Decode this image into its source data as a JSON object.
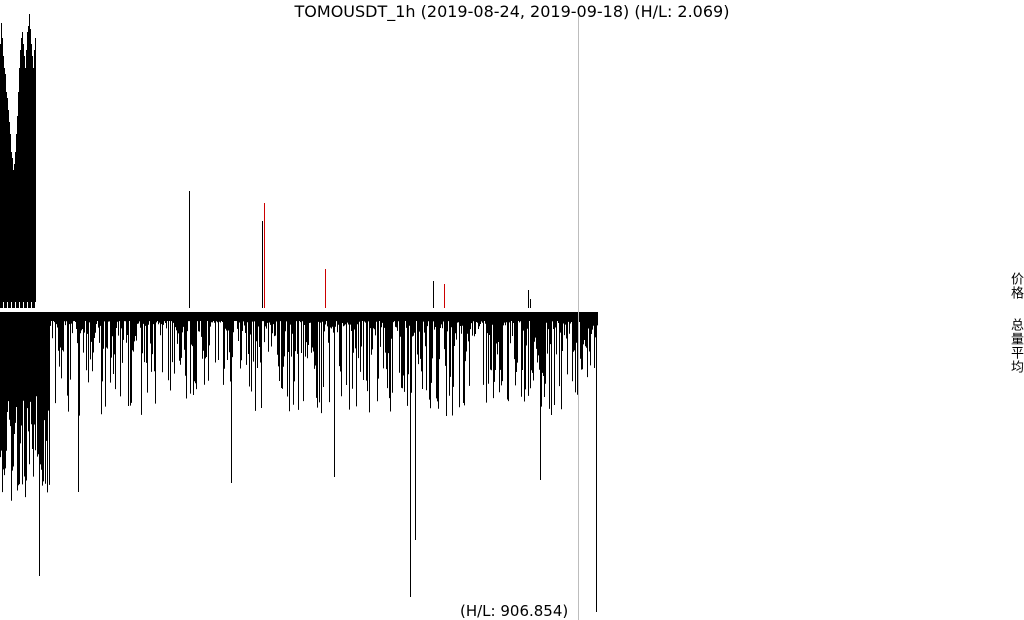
{
  "chart_data": {
    "type": "bar",
    "title": "TOMOUSDT_1h (2019-08-24, 2019-09-18) (H/L: 2.069)",
    "symbol": "TOMOUSDT",
    "interval": "1h",
    "date_range": [
      "2019-08-24",
      "2019-09-18"
    ],
    "panels": [
      {
        "name": "价格",
        "high_low_ratio": 2.069,
        "baseline": "bottom",
        "colors": {
          "normal": "#000000",
          "highlight": "#cc0000"
        },
        "series_description": "price spikes: dense band at start, isolated spikes later",
        "dense_start_values": [
          0.88,
          0.95,
          0.9,
          0.84,
          0.8,
          0.78,
          0.72,
          0.7,
          0.66,
          0.62,
          0.58,
          0.52,
          0.5,
          0.46,
          0.48,
          0.52,
          0.58,
          0.64,
          0.72,
          0.8,
          0.86,
          0.9,
          0.92,
          0.88,
          0.84,
          0.8,
          0.86,
          0.92,
          0.94,
          0.98,
          0.93,
          0.88,
          0.84,
          0.8,
          0.86,
          0.9
        ],
        "spikes": [
          {
            "index": 189,
            "value": 0.39,
            "color": "#000000"
          },
          {
            "index": 262,
            "value": 0.29,
            "color": "#000000"
          },
          {
            "index": 264,
            "value": 0.35,
            "color": "#cc0000"
          },
          {
            "index": 325,
            "value": 0.13,
            "color": "#cc0000"
          },
          {
            "index": 433,
            "value": 0.09,
            "color": "#000000"
          },
          {
            "index": 444,
            "value": 0.08,
            "color": "#cc0000"
          },
          {
            "index": 528,
            "value": 0.06,
            "color": "#000000"
          },
          {
            "index": 530,
            "value": 0.03,
            "color": "#000000"
          }
        ]
      },
      {
        "name": "总量平均",
        "high_low_ratio": 906.854,
        "baseline": "top",
        "color": "#000000",
        "series_description": "hourly volume hanging from top axis",
        "peaks": [
          {
            "index": 39,
            "value": 0.88
          },
          {
            "index": 410,
            "value": 0.95
          },
          {
            "index": 596,
            "value": 1.0
          },
          {
            "index": 334,
            "value": 0.55
          },
          {
            "index": 231,
            "value": 0.57
          },
          {
            "index": 540,
            "value": 0.56
          },
          {
            "index": 78,
            "value": 0.6
          },
          {
            "index": 415,
            "value": 0.76
          }
        ]
      }
    ],
    "cursor_line_index": 578
  },
  "labels": {
    "title": "TOMOUSDT_1h (2019-08-24, 2019-09-18) (H/L: 2.069)",
    "volume_hl": "(H/L: 906.854)",
    "price_panel": "价格",
    "volume_panel": "总量平均"
  }
}
